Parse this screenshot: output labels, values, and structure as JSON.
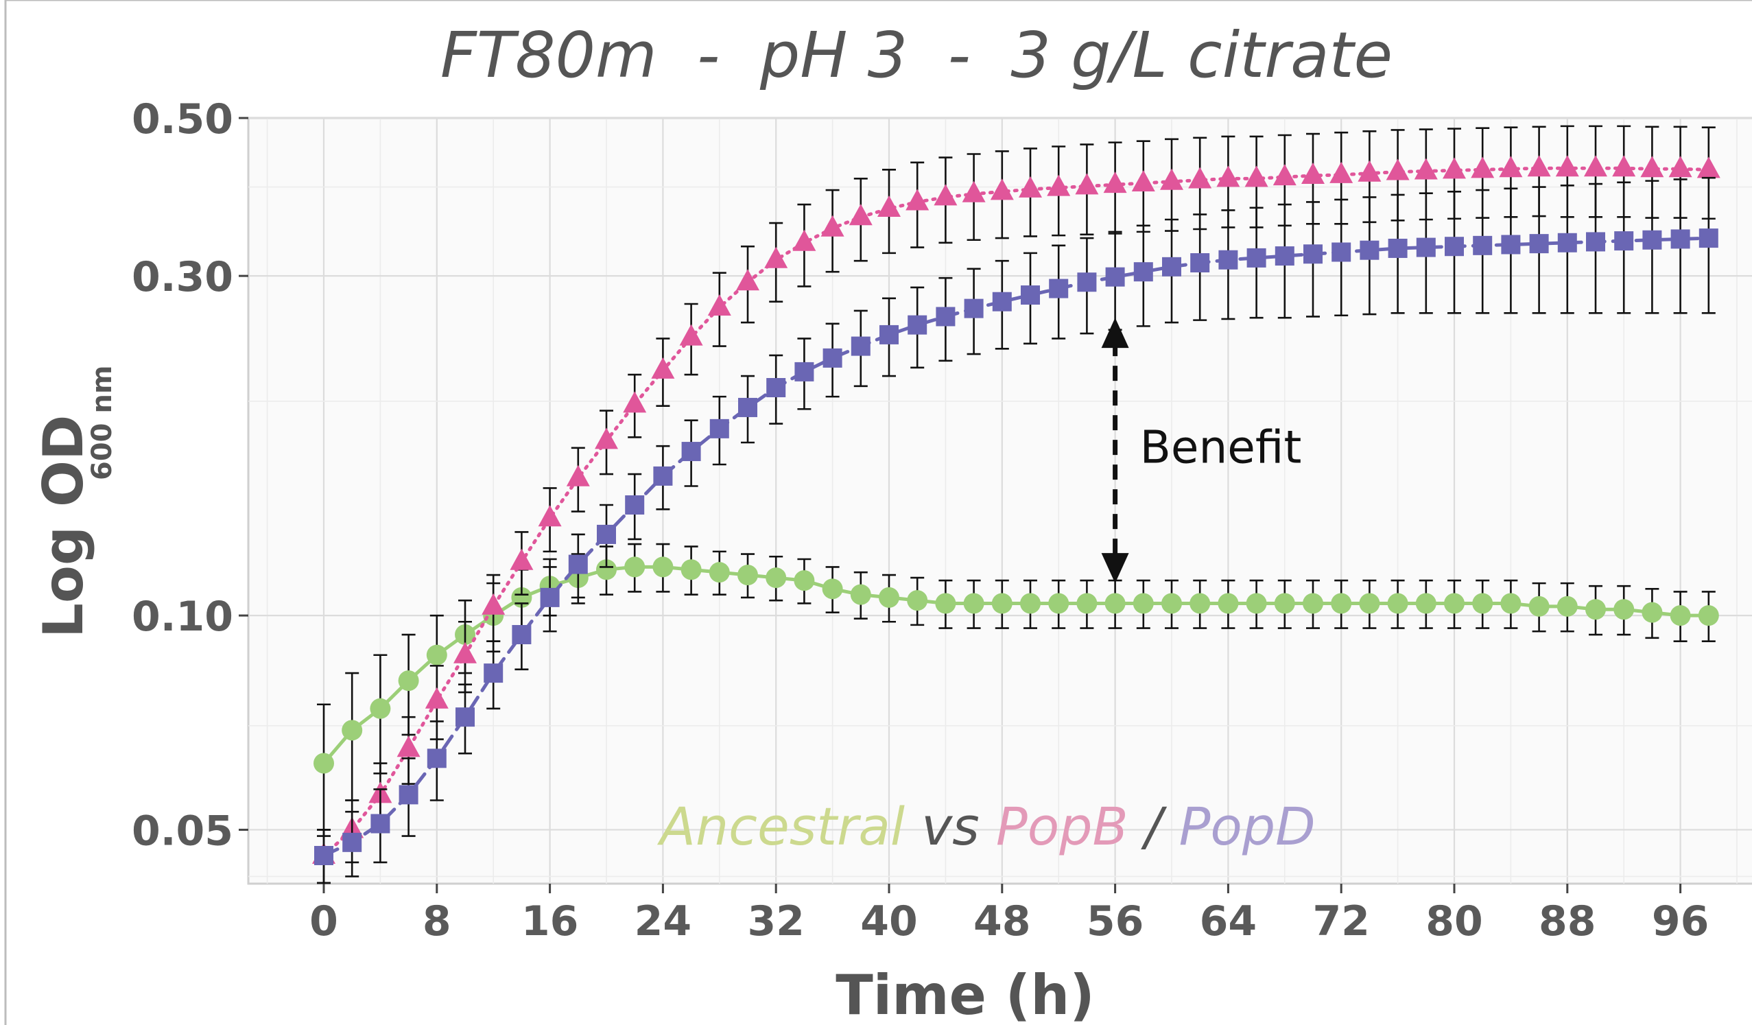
{
  "chart_data": {
    "type": "line",
    "title": "FT80m  -  pH 3  -  3 g/L citrate",
    "xlabel": "Time (h)",
    "ylabel_main": "Log OD",
    "ylabel_sub": "600 nm",
    "yscale": "log",
    "xlim": [
      -5.5,
      100
    ],
    "ylim": [
      0.042,
      0.5
    ],
    "x_ticks": [
      0,
      8,
      16,
      24,
      32,
      40,
      48,
      56,
      64,
      72,
      80,
      88,
      96
    ],
    "y_ticks": [
      {
        "value": 0.05,
        "label": "0.05"
      },
      {
        "value": 0.1,
        "label": "0.10"
      },
      {
        "value": 0.3,
        "label": "0.30"
      },
      {
        "value": 0.5,
        "label": "0.50"
      }
    ],
    "grid": true,
    "x": [
      0,
      2,
      4,
      6,
      8,
      10,
      12,
      14,
      16,
      18,
      20,
      22,
      24,
      26,
      28,
      30,
      32,
      34,
      36,
      38,
      40,
      42,
      44,
      46,
      48,
      50,
      52,
      54,
      56,
      58,
      60,
      62,
      64,
      66,
      68,
      70,
      72,
      74,
      76,
      78,
      80,
      82,
      84,
      86,
      88,
      90,
      92,
      94,
      96,
      98
    ],
    "series": [
      {
        "id": "ancestral",
        "color": "#9ccf78",
        "marker": "circle",
        "line_style": "solid",
        "values": [
          0.062,
          0.069,
          0.074,
          0.081,
          0.088,
          0.094,
          0.1,
          0.106,
          0.11,
          0.113,
          0.116,
          0.117,
          0.117,
          0.116,
          0.115,
          0.114,
          0.113,
          0.112,
          0.109,
          0.107,
          0.106,
          0.105,
          0.104,
          0.104,
          0.104,
          0.104,
          0.104,
          0.104,
          0.104,
          0.104,
          0.104,
          0.104,
          0.104,
          0.104,
          0.104,
          0.104,
          0.104,
          0.104,
          0.104,
          0.104,
          0.104,
          0.104,
          0.104,
          0.103,
          0.103,
          0.102,
          0.102,
          0.101,
          0.1,
          0.1
        ],
        "error": [
          0.013,
          0.014,
          0.014,
          0.013,
          0.012,
          0.011,
          0.011,
          0.01,
          0.01,
          0.009,
          0.009,
          0.009,
          0.009,
          0.009,
          0.008,
          0.008,
          0.008,
          0.008,
          0.008,
          0.008,
          0.008,
          0.008,
          0.008,
          0.008,
          0.008,
          0.008,
          0.008,
          0.008,
          0.008,
          0.008,
          0.008,
          0.008,
          0.008,
          0.008,
          0.008,
          0.008,
          0.008,
          0.008,
          0.008,
          0.008,
          0.008,
          0.008,
          0.008,
          0.008,
          0.008,
          0.008,
          0.008,
          0.008,
          0.008,
          0.008
        ]
      },
      {
        "id": "popb",
        "color": "#e0569a",
        "marker": "triangle",
        "line_style": "dotted",
        "values": [
          0.046,
          0.05,
          0.056,
          0.065,
          0.076,
          0.088,
          0.103,
          0.119,
          0.137,
          0.156,
          0.176,
          0.198,
          0.221,
          0.246,
          0.271,
          0.294,
          0.316,
          0.334,
          0.35,
          0.363,
          0.373,
          0.381,
          0.387,
          0.391,
          0.394,
          0.397,
          0.399,
          0.401,
          0.403,
          0.405,
          0.407,
          0.409,
          0.411,
          0.411,
          0.413,
          0.415,
          0.416,
          0.418,
          0.42,
          0.421,
          0.422,
          0.423,
          0.424,
          0.425,
          0.425,
          0.425,
          0.425,
          0.424,
          0.424,
          0.423
        ],
        "error": [
          0.004,
          0.005,
          0.006,
          0.007,
          0.009,
          0.01,
          0.011,
          0.012,
          0.014,
          0.016,
          0.018,
          0.02,
          0.024,
          0.028,
          0.032,
          0.036,
          0.04,
          0.044,
          0.046,
          0.048,
          0.05,
          0.052,
          0.053,
          0.054,
          0.055,
          0.056,
          0.057,
          0.058,
          0.059,
          0.059,
          0.06,
          0.06,
          0.06,
          0.06,
          0.06,
          0.06,
          0.061,
          0.061,
          0.061,
          0.061,
          0.061,
          0.061,
          0.061,
          0.061,
          0.062,
          0.062,
          0.062,
          0.062,
          0.062,
          0.062
        ]
      },
      {
        "id": "popd",
        "color": "#6a66b4",
        "marker": "square",
        "line_style": "dashed",
        "values": [
          0.046,
          0.048,
          0.051,
          0.056,
          0.063,
          0.072,
          0.083,
          0.094,
          0.106,
          0.118,
          0.13,
          0.143,
          0.157,
          0.17,
          0.183,
          0.196,
          0.209,
          0.22,
          0.23,
          0.239,
          0.248,
          0.256,
          0.263,
          0.27,
          0.276,
          0.282,
          0.288,
          0.294,
          0.299,
          0.304,
          0.309,
          0.313,
          0.316,
          0.318,
          0.32,
          0.322,
          0.324,
          0.326,
          0.328,
          0.329,
          0.33,
          0.331,
          0.332,
          0.333,
          0.334,
          0.335,
          0.336,
          0.337,
          0.338,
          0.339
        ],
        "error": [
          0.004,
          0.005,
          0.006,
          0.007,
          0.008,
          0.008,
          0.009,
          0.01,
          0.011,
          0.012,
          0.013,
          0.015,
          0.016,
          0.018,
          0.02,
          0.021,
          0.023,
          0.025,
          0.027,
          0.029,
          0.031,
          0.033,
          0.035,
          0.037,
          0.039,
          0.041,
          0.043,
          0.045,
          0.047,
          0.049,
          0.051,
          0.053,
          0.055,
          0.056,
          0.058,
          0.059,
          0.06,
          0.061,
          0.062,
          0.063,
          0.064,
          0.065,
          0.066,
          0.067,
          0.068,
          0.069,
          0.07,
          0.071,
          0.072,
          0.073
        ]
      }
    ],
    "annotation": {
      "text": "Benefit",
      "x": 56,
      "y_top": 0.262,
      "y_bottom": 0.111
    },
    "caption": [
      {
        "text": "Ancestral",
        "color": "#ccd98e"
      },
      {
        "text": " vs ",
        "color": "#555555"
      },
      {
        "text": "PopB",
        "color": "#e39ab8"
      },
      {
        "text": " / ",
        "color": "#555555"
      },
      {
        "text": "PopD",
        "color": "#a99fd0"
      }
    ],
    "colors": {
      "panel": "#fafafa",
      "grid_major": "#dcdcdc",
      "grid_minor": "#ececec",
      "axis_text": "#5a5a5a",
      "title": "#555555",
      "error_bar": "#111111"
    }
  }
}
